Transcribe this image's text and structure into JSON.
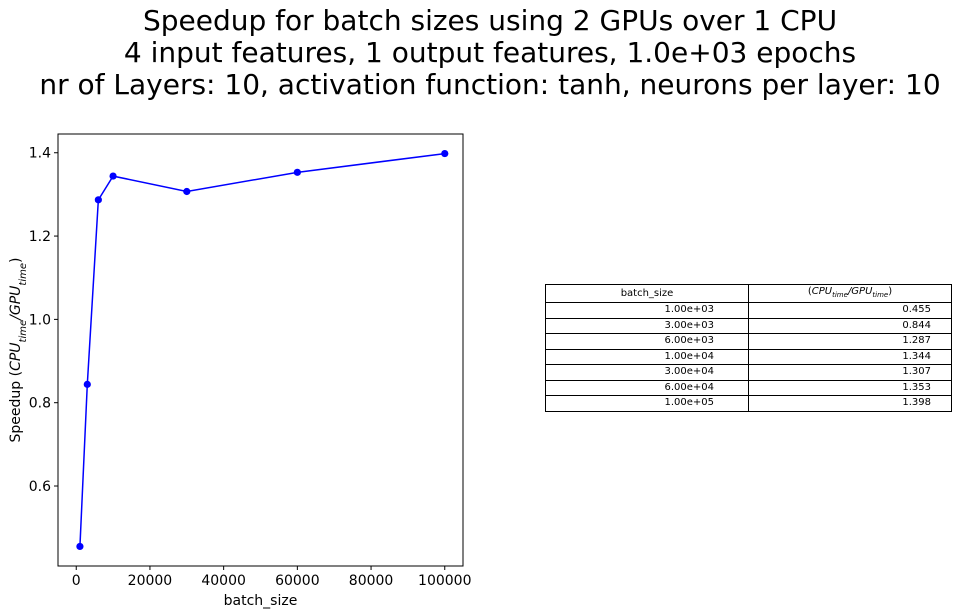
{
  "figure": {
    "title_lines": [
      "Speedup for batch sizes using 2 GPUs over 1 CPU",
      "4 input features, 1 output features, 1.0e+03 epochs",
      "nr of Layers: 10, activation function: tanh, neurons per layer: 10"
    ]
  },
  "chart_data": {
    "type": "line",
    "title": "Speedup for batch sizes using 2 GPUs over 1 CPU\n4 input features, 1 output features, 1.0e+03 epochs\nnr of Layers: 10, activation function: tanh, neurons per layer: 10",
    "xlabel": "batch_size",
    "ylabel_prefix": "Speedup ",
    "ylabel_math": {
      "num": "CPU",
      "num_sub": "time",
      "den": "GPU",
      "den_sub": "time"
    },
    "x": [
      1000,
      3000,
      6000,
      10000,
      30000,
      60000,
      100000
    ],
    "y": [
      0.455,
      0.844,
      1.287,
      1.344,
      1.307,
      1.353,
      1.398
    ],
    "xlim": [
      -4950,
      104950
    ],
    "ylim": [
      0.408,
      1.445
    ],
    "xticks": [
      0,
      20000,
      40000,
      60000,
      80000,
      100000
    ],
    "xtick_labels": [
      "0",
      "20000",
      "40000",
      "60000",
      "80000",
      "100000"
    ],
    "yticks": [
      0.6,
      0.8,
      1.0,
      1.2,
      1.4
    ],
    "ytick_labels": [
      "0.6",
      "0.8",
      "1.0",
      "1.2",
      "1.4"
    ],
    "color": "#0000ff",
    "marker": "circle",
    "grid": false,
    "legend": "none"
  },
  "table": {
    "header_batch": "batch_size",
    "header_ratio_math": {
      "num": "CPU",
      "num_sub": "time",
      "den": "GPU",
      "den_sub": "time"
    },
    "rows": [
      {
        "batch": "1.00e+03",
        "ratio": "0.455"
      },
      {
        "batch": "3.00e+03",
        "ratio": "0.844"
      },
      {
        "batch": "6.00e+03",
        "ratio": "1.287"
      },
      {
        "batch": "1.00e+04",
        "ratio": "1.344"
      },
      {
        "batch": "3.00e+04",
        "ratio": "1.307"
      },
      {
        "batch": "6.00e+04",
        "ratio": "1.353"
      },
      {
        "batch": "1.00e+05",
        "ratio": "1.398"
      }
    ]
  }
}
